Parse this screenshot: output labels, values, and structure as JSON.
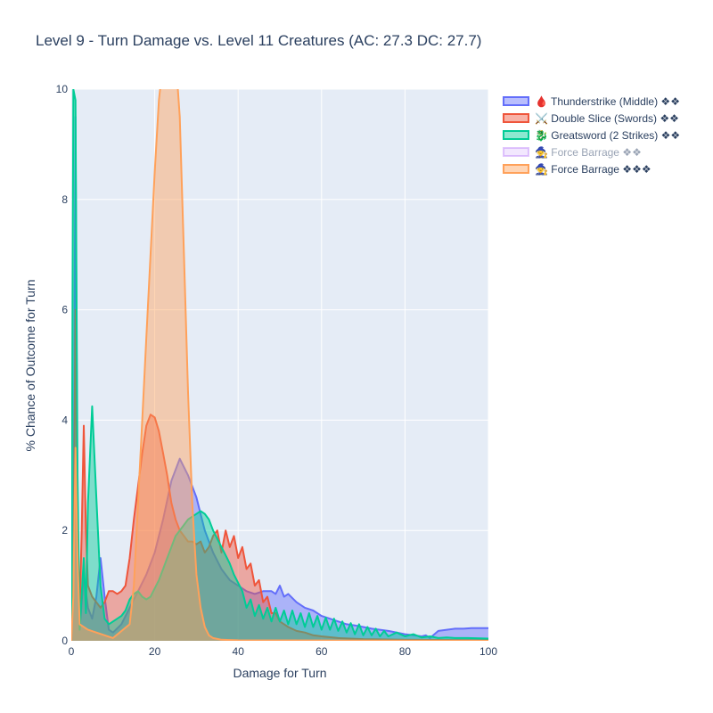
{
  "chart_data": {
    "type": "area",
    "title": "Level 9 - Turn Damage vs. Level 11 Creatures (AC: 27.3 DC: 27.7)",
    "xlabel": "Damage for Turn",
    "ylabel": "% Chance of Outcome for Turn",
    "xlim": [
      0,
      100
    ],
    "ylim": [
      0,
      10
    ],
    "xticks": [
      "0",
      "20",
      "40",
      "60",
      "80",
      "100"
    ],
    "yticks": [
      "0",
      "2",
      "4",
      "6",
      "8",
      "10"
    ],
    "grid": true,
    "legend_position": "right",
    "series": [
      {
        "name": "🩸 Thunderstrike (Middle) ❖❖",
        "color": "#636efa",
        "visible": true,
        "points": [
          [
            0,
            0
          ],
          [
            0.5,
            1.2
          ],
          [
            1,
            9.5
          ],
          [
            1.5,
            2
          ],
          [
            2,
            0.2
          ],
          [
            3,
            1.2
          ],
          [
            4,
            0.6
          ],
          [
            5,
            0.4
          ],
          [
            6,
            0.8
          ],
          [
            7,
            1.5
          ],
          [
            8,
            0.8
          ],
          [
            9,
            0.2
          ],
          [
            10,
            0.15
          ],
          [
            12,
            0.3
          ],
          [
            14,
            0.6
          ],
          [
            16,
            0.9
          ],
          [
            18,
            1.2
          ],
          [
            20,
            1.6
          ],
          [
            22,
            2.2
          ],
          [
            24,
            2.9
          ],
          [
            26,
            3.3
          ],
          [
            28,
            3.0
          ],
          [
            30,
            2.6
          ],
          [
            32,
            2.0
          ],
          [
            34,
            1.6
          ],
          [
            36,
            1.3
          ],
          [
            38,
            1.1
          ],
          [
            40,
            1.0
          ],
          [
            42,
            0.9
          ],
          [
            44,
            0.85
          ],
          [
            46,
            0.9
          ],
          [
            48,
            0.9
          ],
          [
            49,
            0.85
          ],
          [
            50,
            1.0
          ],
          [
            51,
            0.8
          ],
          [
            52,
            0.85
          ],
          [
            54,
            0.7
          ],
          [
            56,
            0.6
          ],
          [
            58,
            0.55
          ],
          [
            60,
            0.45
          ],
          [
            62,
            0.4
          ],
          [
            64,
            0.35
          ],
          [
            66,
            0.3
          ],
          [
            68,
            0.28
          ],
          [
            70,
            0.25
          ],
          [
            72,
            0.22
          ],
          [
            74,
            0.2
          ],
          [
            76,
            0.18
          ],
          [
            78,
            0.15
          ],
          [
            80,
            0.12
          ],
          [
            82,
            0.1
          ],
          [
            84,
            0.08
          ],
          [
            85,
            0.1
          ],
          [
            86,
            0.05
          ],
          [
            88,
            0.18
          ],
          [
            90,
            0.2
          ],
          [
            92,
            0.22
          ],
          [
            94,
            0.22
          ],
          [
            96,
            0.23
          ],
          [
            98,
            0.23
          ],
          [
            100,
            0.23
          ]
        ]
      },
      {
        "name": "⚔️ Double Slice (Swords) ❖❖",
        "color": "#ef553b",
        "visible": true,
        "points": [
          [
            0,
            0
          ],
          [
            0.5,
            1
          ],
          [
            1,
            6
          ],
          [
            1.5,
            2
          ],
          [
            2,
            0.5
          ],
          [
            2.5,
            2
          ],
          [
            3,
            3.9
          ],
          [
            3.5,
            2
          ],
          [
            4,
            1
          ],
          [
            5,
            0.8
          ],
          [
            6,
            0.7
          ],
          [
            7,
            0.6
          ],
          [
            8,
            0.7
          ],
          [
            9,
            0.9
          ],
          [
            10,
            0.9
          ],
          [
            11,
            0.85
          ],
          [
            12,
            0.9
          ],
          [
            13,
            1.0
          ],
          [
            14,
            1.5
          ],
          [
            15,
            2.2
          ],
          [
            16,
            2.8
          ],
          [
            17,
            3.4
          ],
          [
            18,
            3.9
          ],
          [
            19,
            4.1
          ],
          [
            20,
            4.05
          ],
          [
            21,
            3.8
          ],
          [
            22,
            3.4
          ],
          [
            23,
            3.0
          ],
          [
            24,
            2.5
          ],
          [
            25,
            2.2
          ],
          [
            26,
            2.0
          ],
          [
            27,
            1.9
          ],
          [
            28,
            1.8
          ],
          [
            29,
            1.8
          ],
          [
            30,
            1.75
          ],
          [
            31,
            1.8
          ],
          [
            32,
            1.6
          ],
          [
            33,
            1.7
          ],
          [
            34,
            1.9
          ],
          [
            35,
            2.0
          ],
          [
            36,
            1.6
          ],
          [
            37,
            2.0
          ],
          [
            38,
            1.7
          ],
          [
            39,
            1.9
          ],
          [
            40,
            1.5
          ],
          [
            41,
            1.7
          ],
          [
            42,
            1.3
          ],
          [
            43,
            1.4
          ],
          [
            44,
            1.0
          ],
          [
            45,
            1.1
          ],
          [
            46,
            0.7
          ],
          [
            47,
            0.8
          ],
          [
            48,
            0.5
          ],
          [
            49,
            0.5
          ],
          [
            50,
            0.35
          ],
          [
            52,
            0.25
          ],
          [
            54,
            0.18
          ],
          [
            56,
            0.15
          ],
          [
            58,
            0.1
          ],
          [
            60,
            0.08
          ],
          [
            64,
            0.05
          ],
          [
            70,
            0.03
          ],
          [
            80,
            0.02
          ],
          [
            100,
            0.01
          ]
        ]
      },
      {
        "name": "🐉 Greatsword (2 Strikes) ❖❖",
        "color": "#00cc96",
        "visible": true,
        "points": [
          [
            0,
            0
          ],
          [
            0.5,
            10
          ],
          [
            1,
            9.8
          ],
          [
            1.5,
            3
          ],
          [
            2,
            0.2
          ],
          [
            3,
            1.5
          ],
          [
            3.5,
            0.5
          ],
          [
            4,
            2.5
          ],
          [
            5,
            4.25
          ],
          [
            6,
            2.6
          ],
          [
            7,
            1.0
          ],
          [
            8,
            0.4
          ],
          [
            9,
            0.3
          ],
          [
            10,
            0.35
          ],
          [
            11,
            0.4
          ],
          [
            12,
            0.45
          ],
          [
            13,
            0.55
          ],
          [
            14,
            0.75
          ],
          [
            15,
            0.85
          ],
          [
            16,
            0.9
          ],
          [
            17,
            0.8
          ],
          [
            18,
            0.75
          ],
          [
            19,
            0.8
          ],
          [
            20,
            0.95
          ],
          [
            21,
            1.1
          ],
          [
            22,
            1.3
          ],
          [
            23,
            1.5
          ],
          [
            24,
            1.7
          ],
          [
            25,
            1.9
          ],
          [
            26,
            2.0
          ],
          [
            27,
            2.1
          ],
          [
            28,
            2.2
          ],
          [
            29,
            2.25
          ],
          [
            30,
            2.3
          ],
          [
            31,
            2.35
          ],
          [
            32,
            2.3
          ],
          [
            33,
            2.2
          ],
          [
            34,
            2.0
          ],
          [
            35,
            1.85
          ],
          [
            36,
            1.7
          ],
          [
            37,
            1.55
          ],
          [
            38,
            1.4
          ],
          [
            39,
            1.2
          ],
          [
            40,
            1.05
          ],
          [
            41,
            0.9
          ],
          [
            42,
            0.6
          ],
          [
            43,
            0.75
          ],
          [
            44,
            0.45
          ],
          [
            45,
            0.65
          ],
          [
            46,
            0.4
          ],
          [
            47,
            0.6
          ],
          [
            48,
            0.35
          ],
          [
            49,
            0.6
          ],
          [
            50,
            0.35
          ],
          [
            51,
            0.55
          ],
          [
            52,
            0.3
          ],
          [
            53,
            0.55
          ],
          [
            54,
            0.3
          ],
          [
            55,
            0.5
          ],
          [
            56,
            0.25
          ],
          [
            57,
            0.5
          ],
          [
            58,
            0.25
          ],
          [
            59,
            0.45
          ],
          [
            60,
            0.2
          ],
          [
            61,
            0.42
          ],
          [
            62,
            0.2
          ],
          [
            63,
            0.4
          ],
          [
            64,
            0.18
          ],
          [
            65,
            0.35
          ],
          [
            66,
            0.15
          ],
          [
            67,
            0.32
          ],
          [
            68,
            0.12
          ],
          [
            69,
            0.3
          ],
          [
            70,
            0.1
          ],
          [
            71,
            0.25
          ],
          [
            72,
            0.1
          ],
          [
            73,
            0.22
          ],
          [
            74,
            0.08
          ],
          [
            75,
            0.18
          ],
          [
            76,
            0.08
          ],
          [
            78,
            0.15
          ],
          [
            80,
            0.08
          ],
          [
            82,
            0.12
          ],
          [
            84,
            0.06
          ],
          [
            86,
            0.08
          ],
          [
            88,
            0.05
          ],
          [
            90,
            0.06
          ],
          [
            92,
            0.05
          ],
          [
            95,
            0.05
          ],
          [
            100,
            0.04
          ]
        ]
      },
      {
        "name": "🧙 Force Barrage ❖❖",
        "color": "#ab63fa",
        "visible": false,
        "points": []
      },
      {
        "name": "🧙 Force Barrage ❖❖❖",
        "color": "#ffa15a",
        "visible": true,
        "points": [
          [
            0,
            0
          ],
          [
            0.5,
            0.8
          ],
          [
            1,
            3.5
          ],
          [
            1.5,
            1.5
          ],
          [
            2,
            0.3
          ],
          [
            4,
            0.2
          ],
          [
            10,
            0.05
          ],
          [
            14,
            0.3
          ],
          [
            15,
            1.0
          ],
          [
            16,
            2.5
          ],
          [
            17,
            4.0
          ],
          [
            18,
            5.5
          ],
          [
            19,
            7.0
          ],
          [
            20,
            8.5
          ],
          [
            21,
            9.8
          ],
          [
            22,
            10.5
          ],
          [
            23,
            11.5
          ],
          [
            24,
            11.2
          ],
          [
            25,
            10.6
          ],
          [
            26,
            9.5
          ],
          [
            27,
            7.0
          ],
          [
            28,
            4.5
          ],
          [
            29,
            2.5
          ],
          [
            30,
            1.2
          ],
          [
            31,
            0.6
          ],
          [
            32,
            0.25
          ],
          [
            33,
            0.1
          ],
          [
            34,
            0.05
          ],
          [
            36,
            0.02
          ],
          [
            40,
            0.01
          ],
          [
            100,
            0
          ]
        ]
      }
    ]
  }
}
